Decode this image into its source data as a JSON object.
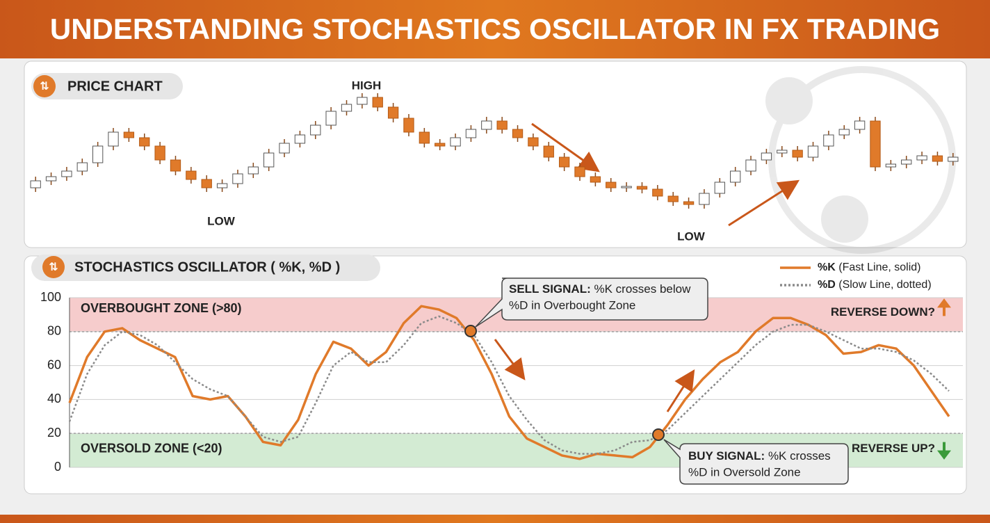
{
  "title": "UNDERSTANDING STOCHASTICS OSCILLATOR IN FX TRADING",
  "chart_data": [
    {
      "type": "candlestick",
      "title": "PRICE CHART",
      "open": [
        30,
        35,
        38,
        42,
        48,
        60,
        70,
        66,
        60,
        50,
        42,
        36,
        30,
        33,
        40,
        45,
        55,
        62,
        68,
        75,
        85,
        90,
        95,
        88,
        80,
        70,
        62,
        60,
        66,
        72,
        78,
        72,
        66,
        60,
        52,
        45,
        38,
        34,
        30,
        31,
        29,
        24,
        20,
        18,
        26,
        34,
        42,
        50,
        55,
        57,
        52,
        60,
        68,
        72,
        78,
        45,
        47,
        50,
        53,
        49
      ],
      "high": [
        38,
        41,
        45,
        51,
        63,
        73,
        73,
        69,
        63,
        53,
        45,
        39,
        36,
        43,
        48,
        58,
        65,
        71,
        78,
        88,
        93,
        98,
        98,
        91,
        83,
        73,
        65,
        69,
        75,
        81,
        81,
        75,
        69,
        63,
        55,
        48,
        41,
        37,
        34,
        34,
        32,
        27,
        23,
        29,
        37,
        45,
        53,
        58,
        60,
        60,
        63,
        71,
        75,
        81,
        81,
        50,
        53,
        56,
        56,
        55
      ],
      "low": [
        27,
        32,
        35,
        39,
        45,
        57,
        63,
        57,
        47,
        39,
        33,
        27,
        27,
        30,
        37,
        42,
        52,
        59,
        65,
        72,
        82,
        87,
        85,
        77,
        67,
        59,
        57,
        57,
        63,
        69,
        69,
        63,
        57,
        49,
        42,
        35,
        31,
        27,
        27,
        26,
        21,
        17,
        15,
        15,
        23,
        31,
        39,
        47,
        52,
        49,
        49,
        57,
        65,
        69,
        42,
        42,
        44,
        47,
        46,
        46
      ],
      "close": [
        35,
        38,
        42,
        48,
        60,
        70,
        66,
        60,
        50,
        42,
        36,
        30,
        33,
        40,
        45,
        55,
        62,
        68,
        75,
        85,
        90,
        95,
        88,
        80,
        70,
        62,
        60,
        66,
        72,
        78,
        72,
        66,
        60,
        52,
        45,
        38,
        34,
        30,
        31,
        29,
        24,
        20,
        18,
        26,
        34,
        42,
        50,
        55,
        57,
        52,
        60,
        68,
        72,
        78,
        45,
        47,
        50,
        53,
        49,
        52
      ],
      "ylim": [
        -10,
        115
      ],
      "up_color": "#ffffff",
      "down_color": "#e07a2a",
      "annotations": [
        "HIGH",
        "LOW",
        "LOW"
      ]
    },
    {
      "type": "line",
      "title": "STOCHASTICS OSCILLATOR ( %K, %D )",
      "x": [
        0,
        1,
        2,
        3,
        4,
        5,
        6,
        7,
        8,
        9,
        10,
        11,
        12,
        13,
        14,
        15,
        16,
        17,
        18,
        19,
        20,
        21,
        22,
        23,
        24,
        25,
        26,
        27,
        28,
        29,
        30,
        31,
        32,
        33,
        34,
        35,
        36,
        37,
        38,
        39,
        40,
        41,
        42,
        43,
        44,
        45,
        46,
        47,
        48,
        49,
        50
      ],
      "xlim": [
        0,
        50
      ],
      "ylim": [
        0,
        100
      ],
      "yticks": [
        0,
        20,
        40,
        60,
        80,
        100
      ],
      "grid": true,
      "series": [
        {
          "name": "%K",
          "description": "(Fast Line, solid)",
          "color": "#e07a2a",
          "style": "solid",
          "values": [
            38,
            65,
            80,
            82,
            75,
            70,
            65,
            42,
            40,
            42,
            30,
            15,
            13,
            28,
            55,
            74,
            70,
            60,
            68,
            85,
            95,
            93,
            88,
            75,
            55,
            30,
            17,
            12,
            7,
            5,
            8,
            7,
            6,
            12,
            25,
            40,
            52,
            62,
            68,
            80,
            88,
            88,
            84,
            78,
            67,
            68,
            72,
            70,
            60,
            45,
            30
          ]
        },
        {
          "name": "%D",
          "description": "(Slow Line, dotted)",
          "color": "#8a8a8a",
          "style": "dotted",
          "values": [
            27,
            55,
            72,
            80,
            78,
            72,
            62,
            52,
            46,
            42,
            30,
            18,
            15,
            18,
            38,
            60,
            68,
            62,
            62,
            72,
            85,
            89,
            85,
            78,
            62,
            42,
            28,
            16,
            10,
            8,
            8,
            10,
            15,
            16,
            22,
            32,
            42,
            52,
            62,
            72,
            80,
            84,
            84,
            80,
            75,
            70,
            70,
            68,
            63,
            55,
            45
          ]
        }
      ],
      "zones": [
        {
          "label": "OVERBOUGHT ZONE (>80)",
          "from": 80,
          "to": 100,
          "color": "#f6cccc",
          "note": "REVERSE DOWN?"
        },
        {
          "label": "OVERSOLD ZONE (<20)",
          "from": 0,
          "to": 20,
          "color": "#d3ebd3",
          "note": "REVERSE UP?"
        }
      ],
      "signals": [
        {
          "title": "SELL SIGNAL:",
          "text1": "%K crosses below",
          "text2": "%D in Overbought Zone"
        },
        {
          "title": "BUY SIGNAL:",
          "text1": "%K crosses",
          "text2": "%D  in Oversold Zone"
        }
      ]
    }
  ]
}
